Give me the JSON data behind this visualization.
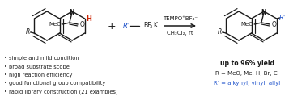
{
  "background_color": "#ffffff",
  "reagent_line1": "TEMPO⁺BF₄⁻",
  "reagent_line2": "CH₂Cl₂, rt",
  "yield_text": "up to 96% yield",
  "r_text": "R = MeO, Me, H, Br, Cl",
  "rprime_text": "R’ = alkynyl, vinyl, allyl",
  "bullet_points": [
    "• simple and mild condition",
    "• broad substrate scope",
    "• high reaction efficiency",
    "• good functional group compatibility",
    "• rapid library construction (21 examples)"
  ],
  "black": "#1a1a1a",
  "blue": "#2255cc",
  "red": "#cc2200"
}
